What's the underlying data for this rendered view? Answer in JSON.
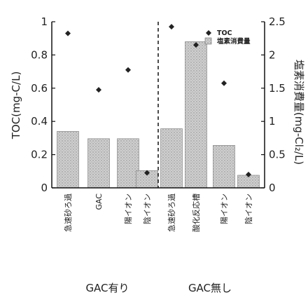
{
  "chart_data": {
    "type": "bar",
    "categories": [
      "急速砂ろ過",
      "GAC",
      "陽イオン",
      "陰イオン",
      "急速砂ろ過",
      "酸化反応槽",
      "陽イオン",
      "陰イオン"
    ],
    "groups": [
      {
        "label": "GAC有り",
        "count": 4
      },
      {
        "label": "GAC無し",
        "count": 4
      }
    ],
    "series": [
      {
        "name": "塩素消費量",
        "axis": "right",
        "kind": "bar",
        "color": "#c8c8c8",
        "values": [
          0.85,
          0.74,
          0.74,
          0.26,
          0.89,
          2.2,
          0.64,
          0.19
        ]
      },
      {
        "name": "TOC",
        "axis": "left",
        "kind": "marker",
        "color": "#222222",
        "values": [
          0.93,
          0.59,
          0.71,
          0.09,
          0.97,
          0.86,
          0.63,
          0.08
        ]
      }
    ],
    "ylabel": "TOC(mg-C/L)",
    "ylabel_right": "塩素消費量(mg-Cl₂/L)",
    "ylim": [
      0,
      1
    ],
    "ylim_right": [
      0,
      2.5
    ],
    "yticks": [
      "0",
      "0.2",
      "0.4",
      "0.6",
      "0.8",
      "1"
    ],
    "yticks_right": [
      "0",
      "0.5",
      "1",
      "1.5",
      "2",
      "2.5"
    ],
    "legend_position": "top-right",
    "divider": "dashed line between groups"
  }
}
